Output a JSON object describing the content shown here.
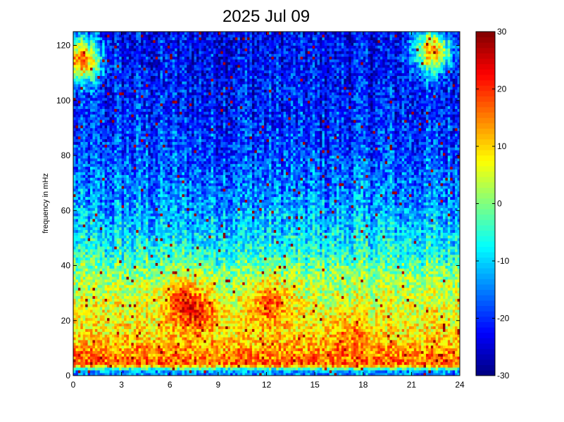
{
  "chart_data": {
    "type": "heatmap",
    "title": "2025 Jul 09",
    "xlabel": "",
    "ylabel": "frequency in mHz",
    "xlim": [
      0,
      24
    ],
    "ylim": [
      0,
      125
    ],
    "x_ticks": [
      "0",
      "3",
      "6",
      "9",
      "12",
      "15",
      "18",
      "21",
      "24"
    ],
    "y_ticks": [
      "0",
      "20",
      "40",
      "60",
      "80",
      "100",
      "120"
    ],
    "colorbar": {
      "range": [
        -30,
        30
      ],
      "colormap": "jet",
      "ticks": [
        "30",
        "20",
        "10",
        "0",
        "-10",
        "-20",
        "-30"
      ]
    },
    "grid": false,
    "intensity_profile": [
      {
        "freq_mHz": 0,
        "value": -15
      },
      {
        "freq_mHz": 2,
        "value": -12
      },
      {
        "freq_mHz": 4,
        "value": 18
      },
      {
        "freq_mHz": 8,
        "value": 14
      },
      {
        "freq_mHz": 15,
        "value": 9
      },
      {
        "freq_mHz": 25,
        "value": 6
      },
      {
        "freq_mHz": 35,
        "value": 2
      },
      {
        "freq_mHz": 45,
        "value": -6
      },
      {
        "freq_mHz": 55,
        "value": -11
      },
      {
        "freq_mHz": 70,
        "value": -16
      },
      {
        "freq_mHz": 85,
        "value": -19
      },
      {
        "freq_mHz": 100,
        "value": -21
      },
      {
        "freq_mHz": 125,
        "value": -23
      }
    ],
    "hotspots": [
      {
        "time_h": 6.8,
        "freq_mHz": 27,
        "value": 20
      },
      {
        "time_h": 7.8,
        "freq_mHz": 22,
        "value": 19
      },
      {
        "time_h": 12.2,
        "freq_mHz": 26,
        "value": 21
      },
      {
        "time_h": 17.2,
        "freq_mHz": 14,
        "value": 17
      },
      {
        "time_h": 0.5,
        "freq_mHz": 115,
        "value": 25
      },
      {
        "time_h": 22.3,
        "freq_mHz": 118,
        "value": 20
      }
    ]
  }
}
